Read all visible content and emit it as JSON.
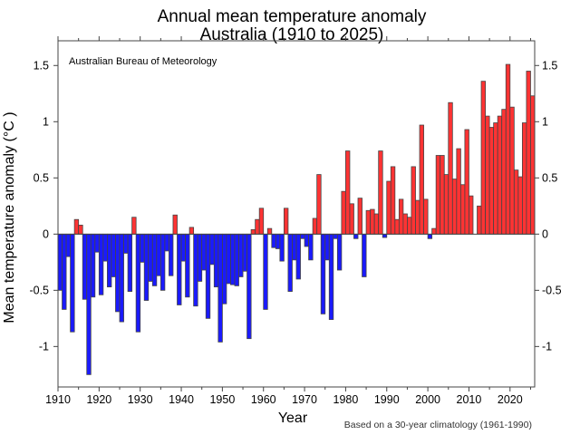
{
  "chart_data": {
    "type": "bar",
    "title": "Annual mean temperature anomaly",
    "subtitle": "Australia (1910 to 2025)",
    "xlabel": "Year",
    "ylabel": "Mean temperature anomaly (°C )",
    "annotation": "Australian Bureau of Meteorology",
    "footnote": "Based on a 30-year climatology (1961-1990)",
    "grid": false,
    "legend": "none",
    "xlim": [
      1910,
      2026
    ],
    "ylim": [
      -1.36,
      1.72
    ],
    "x_ticks": [
      1910,
      1920,
      1930,
      1940,
      1950,
      1960,
      1970,
      1980,
      1990,
      2000,
      2010,
      2020
    ],
    "x_tick_labels": [
      "1910",
      "1920",
      "1930",
      "1940",
      "1950",
      "1960",
      "1970",
      "1980",
      "1990",
      "2000",
      "2010",
      "2020"
    ],
    "y_ticks": [
      -1,
      -0.5,
      0,
      0.5,
      1,
      1.5
    ],
    "y_tick_labels": [
      "-1",
      "-0.5",
      "0",
      "0.5",
      "1",
      "1.5"
    ],
    "colors": {
      "positive": "#ff3333",
      "negative": "#1a1aff",
      "outline": "#444444"
    },
    "x": [
      1910,
      1911,
      1912,
      1913,
      1914,
      1915,
      1916,
      1917,
      1918,
      1919,
      1920,
      1921,
      1922,
      1923,
      1924,
      1925,
      1926,
      1927,
      1928,
      1929,
      1930,
      1931,
      1932,
      1933,
      1934,
      1935,
      1936,
      1937,
      1938,
      1939,
      1940,
      1941,
      1942,
      1943,
      1944,
      1945,
      1946,
      1947,
      1948,
      1949,
      1950,
      1951,
      1952,
      1953,
      1954,
      1955,
      1956,
      1957,
      1958,
      1959,
      1960,
      1961,
      1962,
      1963,
      1964,
      1965,
      1966,
      1967,
      1968,
      1969,
      1970,
      1971,
      1972,
      1973,
      1974,
      1975,
      1976,
      1977,
      1978,
      1979,
      1980,
      1981,
      1982,
      1983,
      1984,
      1985,
      1986,
      1987,
      1988,
      1989,
      1990,
      1991,
      1992,
      1993,
      1994,
      1995,
      1996,
      1997,
      1998,
      1999,
      2000,
      2001,
      2002,
      2003,
      2004,
      2005,
      2006,
      2007,
      2008,
      2009,
      2010,
      2011,
      2012,
      2013,
      2014,
      2015,
      2016,
      2017,
      2018,
      2019,
      2020,
      2021,
      2022,
      2023,
      2024,
      2025
    ],
    "values": [
      -0.5,
      -0.67,
      -0.2,
      -0.87,
      0.13,
      0.08,
      -0.58,
      -1.25,
      -0.56,
      -0.16,
      -0.54,
      -0.24,
      -0.47,
      -0.38,
      -0.69,
      -0.78,
      -0.17,
      -0.51,
      0.15,
      -0.87,
      -0.25,
      -0.59,
      -0.42,
      -0.46,
      -0.37,
      -0.5,
      -0.15,
      -0.37,
      0.17,
      -0.63,
      -0.24,
      -0.56,
      0.06,
      -0.64,
      -0.42,
      -0.32,
      -0.75,
      -0.27,
      -0.47,
      -0.96,
      -0.62,
      -0.44,
      -0.45,
      -0.46,
      -0.38,
      -0.33,
      -0.93,
      0.04,
      0.13,
      0.23,
      -0.67,
      0.05,
      -0.12,
      -0.13,
      -0.24,
      0.23,
      -0.51,
      -0.23,
      -0.4,
      -0.04,
      -0.11,
      -0.23,
      0.14,
      0.53,
      -0.71,
      -0.23,
      -0.76,
      -0.04,
      -0.32,
      0.38,
      0.74,
      0.27,
      -0.04,
      0.32,
      -0.38,
      0.21,
      0.22,
      0.18,
      0.74,
      -0.03,
      0.47,
      0.6,
      0.13,
      0.31,
      0.18,
      0.15,
      0.6,
      0.3,
      0.97,
      0.31,
      -0.04,
      0.05,
      0.7,
      0.7,
      0.53,
      1.17,
      0.49,
      0.76,
      0.44,
      0.93,
      0.34,
      0.0,
      0.25,
      1.36,
      1.05,
      0.95,
      0.99,
      1.05,
      1.11,
      1.51,
      1.13,
      0.57,
      0.51,
      0.99,
      1.45,
      1.23
    ]
  }
}
